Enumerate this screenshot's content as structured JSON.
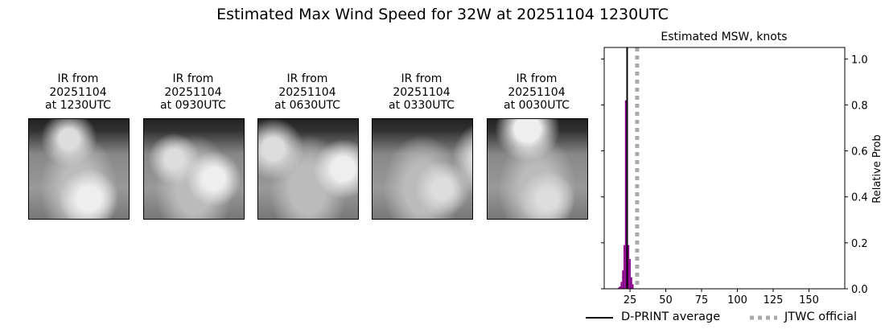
{
  "title": "Estimated Max Wind Speed for 32W at 20251104 1230UTC",
  "ir_panels": [
    {
      "line1": "IR from",
      "line2": "20251104",
      "line3": "at 1230UTC"
    },
    {
      "line1": "IR from",
      "line2": "20251104",
      "line3": "at 0930UTC"
    },
    {
      "line1": "IR from",
      "line2": "20251104",
      "line3": "at 0630UTC"
    },
    {
      "line1": "IR from",
      "line2": "20251104",
      "line3": "at 0330UTC"
    },
    {
      "line1": "IR from",
      "line2": "20251104",
      "line3": "at 0030UTC"
    }
  ],
  "chart_data": {
    "type": "bar",
    "title": "Estimated MSW, knots",
    "ylabel": "Relative Prob",
    "xlim": [
      7,
      175
    ],
    "ylim": [
      0,
      1.05
    ],
    "xticks": [
      25,
      50,
      75,
      100,
      125,
      150
    ],
    "yticks": [
      "0.0",
      "0.2",
      "0.4",
      "0.6",
      "0.8",
      "1.0"
    ],
    "bar_color": "#8b008b",
    "x": [
      17,
      18,
      19,
      20,
      21,
      22,
      23,
      24,
      25,
      26,
      27
    ],
    "values": [
      0.005,
      0.01,
      0.03,
      0.08,
      0.19,
      0.82,
      0.48,
      0.19,
      0.13,
      0.05,
      0.02
    ],
    "dprint_average": 23,
    "jtwc_official": 30,
    "legend": {
      "dprint": "D-PRINT average",
      "jtwc": "JTWC official",
      "placement": "bottom"
    },
    "grid": false
  }
}
